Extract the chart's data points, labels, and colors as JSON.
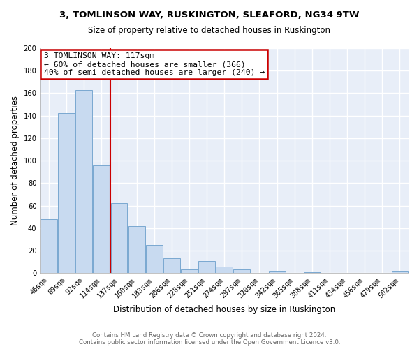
{
  "title_line1": "3, TOMLINSON WAY, RUSKINGTON, SLEAFORD, NG34 9TW",
  "title_line2": "Size of property relative to detached houses in Ruskington",
  "xlabel": "Distribution of detached houses by size in Ruskington",
  "ylabel": "Number of detached properties",
  "bar_labels": [
    "46sqm",
    "69sqm",
    "92sqm",
    "114sqm",
    "137sqm",
    "160sqm",
    "183sqm",
    "206sqm",
    "228sqm",
    "251sqm",
    "274sqm",
    "297sqm",
    "320sqm",
    "342sqm",
    "365sqm",
    "388sqm",
    "411sqm",
    "434sqm",
    "456sqm",
    "479sqm",
    "502sqm"
  ],
  "bar_values": [
    48,
    142,
    163,
    96,
    62,
    42,
    25,
    13,
    3,
    11,
    6,
    3,
    0,
    2,
    0,
    1,
    0,
    0,
    0,
    0,
    2
  ],
  "bar_color": "#c8daf0",
  "bar_edge_color": "#7aa8d0",
  "annotation_title": "3 TOMLINSON WAY: 117sqm",
  "annotation_line2": "← 60% of detached houses are smaller (366)",
  "annotation_line3": "40% of semi-detached houses are larger (240) →",
  "annotation_box_color": "#ffffff",
  "annotation_box_edge_color": "#cc0000",
  "property_line_x": 3.5,
  "ylim": [
    0,
    200
  ],
  "yticks": [
    0,
    20,
    40,
    60,
    80,
    100,
    120,
    140,
    160,
    180,
    200
  ],
  "footer_line1": "Contains HM Land Registry data © Crown copyright and database right 2024.",
  "footer_line2": "Contains public sector information licensed under the Open Government Licence v3.0.",
  "bg_color": "#ffffff",
  "plot_bg_color": "#e8eef8",
  "grid_color": "#ffffff",
  "title_fontsize": 9.5,
  "subtitle_fontsize": 8.5
}
